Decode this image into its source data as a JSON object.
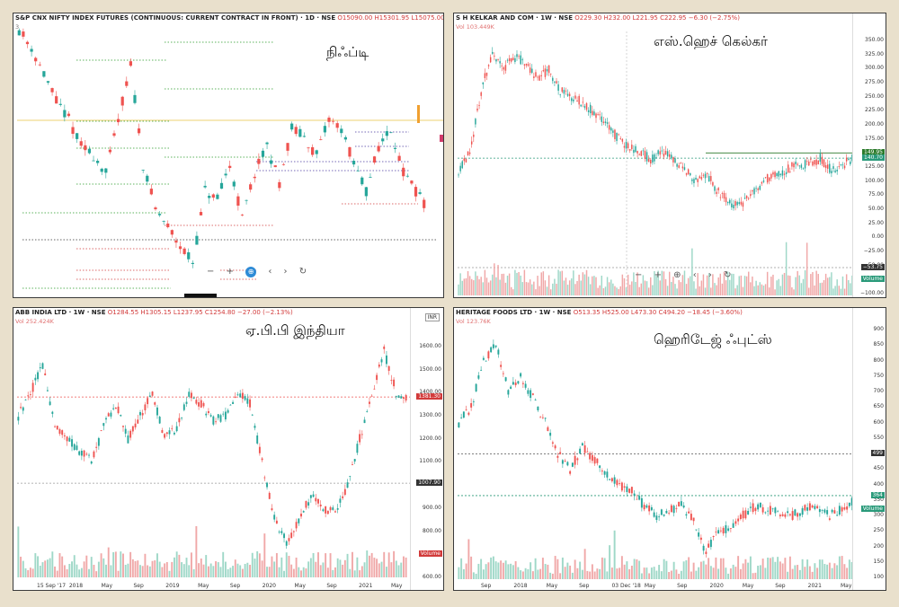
{
  "panels": [
    {
      "symbol": "S&P CNX NIFTY INDEX FUTURES (CONTINUOUS: CURRENT CONTRACT IN FRONT) · 1D · NSE",
      "quote": "O15090.00 H15301.95 L15075.00 C15184.95 +65.40 (+0.43%)",
      "sub": "3",
      "title": "நிஃப்டி",
      "controls": [
        "−",
        "+",
        "⊕",
        "‹",
        "›",
        "↻"
      ],
      "tags": [
        {
          "label": "",
          "color": "#d23b6b"
        }
      ]
    },
    {
      "symbol": "S H KELKAR AND COM · 1W · NSE",
      "quote": "O229.30 H232.00 L221.95 C222.95 −6.30 (−2.75%)",
      "vol": "Vol 103.449K",
      "title": "எஸ்.ஹெச் கெல்கர்",
      "controls": [
        "−",
        "+",
        "⊕",
        "‹",
        "›",
        "↻"
      ],
      "y_ticks": [
        "350.00",
        "325.00",
        "300.00",
        "275.00",
        "250.00",
        "225.00",
        "200.00",
        "175.00",
        "150.00",
        "125.00",
        "100.00",
        "75.00",
        "50.00",
        "25.00",
        "0.00",
        "−25.00",
        "−50.00",
        "−75.00",
        "−100.00"
      ],
      "tags": [
        {
          "label": "149.95",
          "color": "#2a7a2a"
        },
        {
          "label": "140.70",
          "color": "#2a9a7a"
        },
        {
          "label": "−53.75",
          "color": "#333"
        },
        {
          "label": "Volume",
          "color": "#2a9a7a"
        }
      ]
    },
    {
      "symbol": "ABB INDIA LTD · 1W · NSE",
      "quote": "O1284.55 H1305.15 L1237.95 C1254.80 −27.00 (−2.13%)",
      "vol": "Vol 252.424K",
      "title": "ஏ.பி.பி இந்தியா",
      "currency": "INR",
      "y_ticks": [
        "1600.00",
        "1500.00",
        "1400.00",
        "1300.00",
        "1200.00",
        "1100.00",
        "1000.00",
        "900.00",
        "800.00",
        "700.00",
        "600.00"
      ],
      "x_ticks": [
        "15 Sep '17",
        "2018",
        "May",
        "Sep",
        "2019",
        "May",
        "Sep",
        "2020",
        "May",
        "Sep",
        "2021",
        "May"
      ],
      "tags": [
        {
          "label": "1381.30",
          "color": "#d23b3b"
        },
        {
          "label": "1007.90",
          "color": "#333"
        },
        {
          "label": "Volume",
          "color": "#d23b3b"
        }
      ]
    },
    {
      "symbol": "HERITAGE FOODS LTD · 1W · NSE",
      "quote": "O513.35 H525.00 L473.30 C494.20 −18.45 (−3.60%)",
      "vol": "Vol 123.76K",
      "title": "ஹெரிடேஜ் ஃபுட்ஸ்",
      "y_ticks": [
        "900",
        "850",
        "800",
        "750",
        "700",
        "650",
        "600",
        "550",
        "500",
        "450",
        "400",
        "350",
        "300",
        "250",
        "200",
        "150",
        "100"
      ],
      "x_ticks": [
        "Sep",
        "2018",
        "May",
        "Sep",
        "03 Dec '18",
        "May",
        "Sep",
        "2020",
        "May",
        "Sep",
        "2021",
        "May"
      ],
      "tags": [
        {
          "label": "499",
          "color": "#333"
        },
        {
          "label": "364",
          "color": "#2a9a7a"
        },
        {
          "label": "Volume",
          "color": "#2a9a7a"
        }
      ]
    }
  ],
  "chart_data": [
    {
      "type": "candlestick",
      "title": "நிஃப்டி",
      "series": [
        {
          "name": "NIFTY",
          "values": []
        }
      ]
    },
    {
      "type": "candlestick",
      "title": "எஸ்.ஹெச் கெல்கர்",
      "ylim": [
        -100,
        350
      ],
      "series": [
        {
          "name": "S H KELKAR",
          "values": [
            120,
            150,
            260,
            330,
            300,
            320,
            310,
            280,
            300,
            260,
            250,
            240,
            220,
            200,
            180,
            160,
            150,
            140,
            150,
            140,
            120,
            100,
            110,
            80,
            60,
            55,
            80,
            100,
            110,
            120,
            130,
            130,
            140,
            120,
            130,
            140
          ]
        }
      ]
    },
    {
      "type": "candlestick",
      "title": "ஏ.பி.பி இந்தியா",
      "ylim": [
        600,
        1650
      ],
      "series": [
        {
          "name": "ABB INDIA",
          "values": [
            1300,
            1400,
            1520,
            1250,
            1200,
            1150,
            1100,
            1250,
            1350,
            1200,
            1300,
            1400,
            1200,
            1250,
            1400,
            1350,
            1280,
            1300,
            1400,
            1350,
            1100,
            850,
            750,
            850,
            950,
            900,
            880,
            1000,
            1200,
            1400,
            1580,
            1400,
            1380
          ]
        }
      ]
    },
    {
      "type": "candlestick",
      "title": "ஹெரிடேஜ் ஃபுட்ஸ்",
      "ylim": [
        100,
        900
      ],
      "series": [
        {
          "name": "HERITAGE FOODS",
          "values": [
            600,
            650,
            800,
            850,
            700,
            750,
            680,
            600,
            500,
            450,
            520,
            480,
            430,
            400,
            380,
            330,
            300,
            320,
            330,
            280,
            180,
            250,
            260,
            300,
            330,
            320,
            310,
            300,
            320,
            330,
            300,
            320,
            350
          ]
        }
      ]
    }
  ]
}
